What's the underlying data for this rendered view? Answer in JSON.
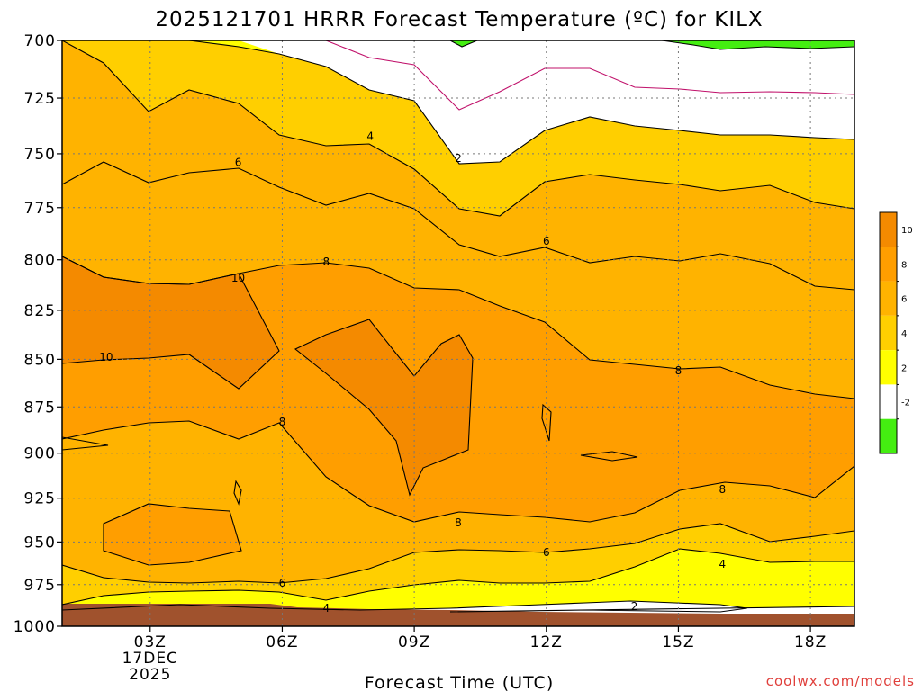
{
  "chart_data": {
    "type": "heatmap",
    "title": "2025121701 HRRR Forecast Temperature (ºC) for KILX",
    "xlabel": "Forecast Time (UTC)",
    "ylabel": "",
    "x_ticks": [
      {
        "hour": 3,
        "label": "03Z",
        "sub": [
          "17DEC",
          "2025"
        ]
      },
      {
        "hour": 6,
        "label": "06Z"
      },
      {
        "hour": 9,
        "label": "09Z"
      },
      {
        "hour": 12,
        "label": "12Z"
      },
      {
        "hour": 15,
        "label": "15Z"
      },
      {
        "hour": 18,
        "label": "18Z"
      }
    ],
    "xlim": [
      1,
      19
    ],
    "y_ticks": [
      700,
      725,
      750,
      775,
      800,
      825,
      850,
      875,
      900,
      925,
      950,
      975,
      1000
    ],
    "ylim": [
      700,
      1000
    ],
    "y_scale": "log",
    "grid": true,
    "legend": {
      "placement": "right",
      "labels": [
        "10",
        "8",
        "6",
        "4",
        "2",
        "-2"
      ],
      "colors": [
        "#f48a00",
        "#ff9e00",
        "#ffb300",
        "#ffcf00",
        "#ffff00",
        "#ffffff",
        "#44ee11"
      ]
    },
    "contour_labels": [
      {
        "text": "10",
        "hour": 5.0,
        "p": 809
      },
      {
        "text": "10",
        "hour": 2.0,
        "p": 849
      },
      {
        "text": "8",
        "hour": 7.0,
        "p": 801
      },
      {
        "text": "8",
        "hour": 6.0,
        "p": 883
      },
      {
        "text": "8",
        "hour": 10.0,
        "p": 939
      },
      {
        "text": "8",
        "hour": 15.0,
        "p": 856
      },
      {
        "text": "8",
        "hour": 16.0,
        "p": 920
      },
      {
        "text": "6",
        "hour": 5.0,
        "p": 754
      },
      {
        "text": "6",
        "hour": 12.0,
        "p": 791
      },
      {
        "text": "6",
        "hour": 12.0,
        "p": 956
      },
      {
        "text": "6",
        "hour": 6.0,
        "p": 974
      },
      {
        "text": "4",
        "hour": 8.0,
        "p": 742
      },
      {
        "text": "4",
        "hour": 7.0,
        "p": 989
      },
      {
        "text": "4",
        "hour": 16.0,
        "p": 963
      },
      {
        "text": "2",
        "hour": 10.0,
        "p": 752
      },
      {
        "text": "2",
        "hour": 14.0,
        "p": 988
      }
    ],
    "colors": {
      "ground": "#a0522d",
      "contour": "#000000",
      "zero_line": "#c0106a",
      "grid": "#777777"
    }
  },
  "credit": "coolwx.com/models"
}
